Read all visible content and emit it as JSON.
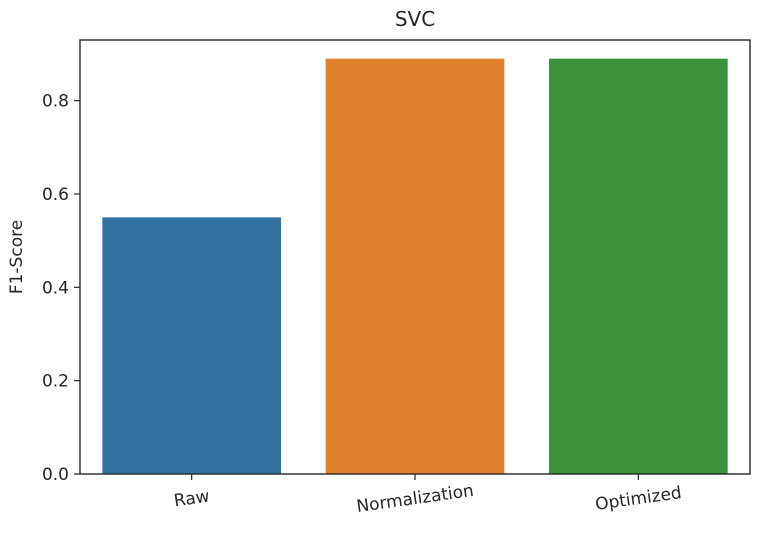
{
  "chart_data": {
    "type": "bar",
    "title": "SVC",
    "xlabel": "",
    "ylabel": "F1-Score",
    "categories": [
      "Raw",
      "Normalization",
      "Optimized"
    ],
    "values": [
      0.55,
      0.89,
      0.89
    ],
    "colors": [
      "#3274a1",
      "#e1812c",
      "#3a923a"
    ],
    "ylim": [
      0,
      0.93
    ],
    "yticks": [
      0.0,
      0.2,
      0.4,
      0.6,
      0.8
    ],
    "ytick_labels": [
      "0.0",
      "0.2",
      "0.4",
      "0.6",
      "0.8"
    ],
    "xtick_rotation_deg": -8,
    "grid": false,
    "legend": "none"
  }
}
